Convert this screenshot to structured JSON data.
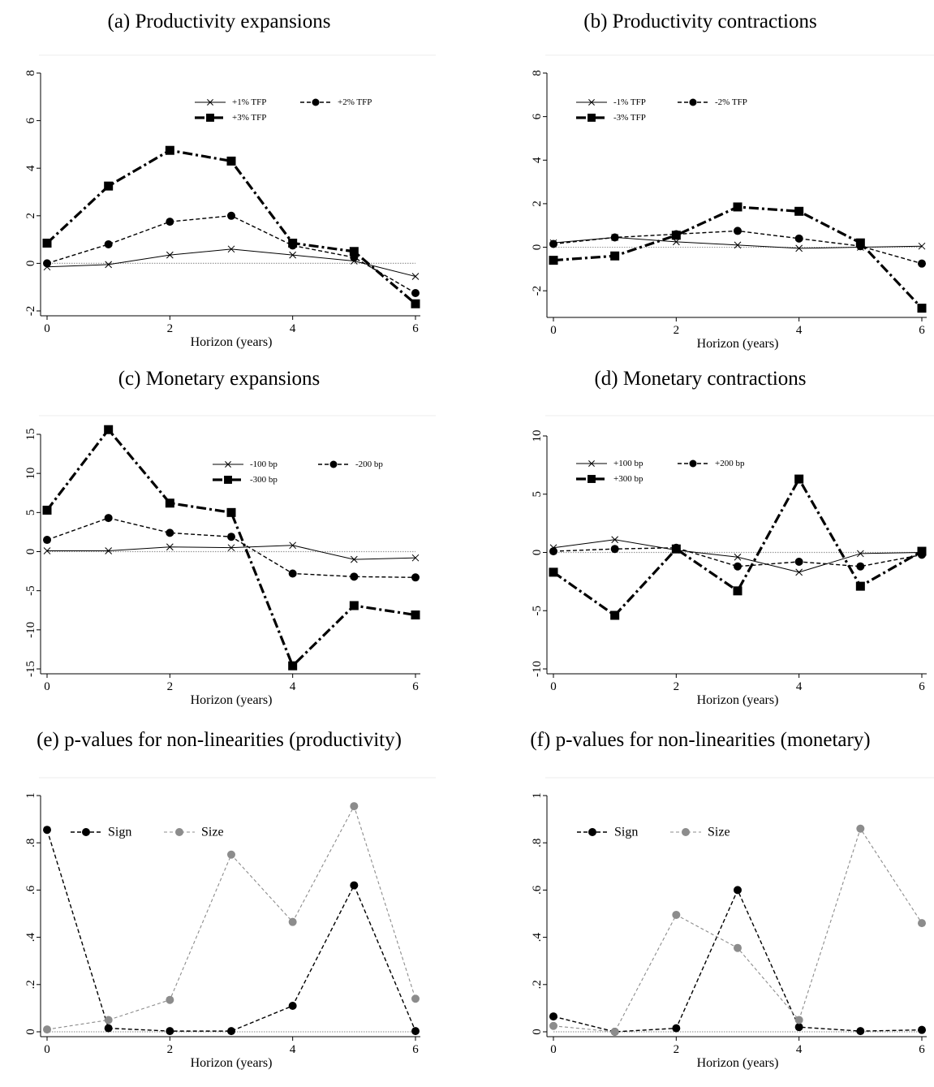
{
  "chart_data": [
    {
      "type": "line",
      "title": "(a) Productivity expansions",
      "xlabel": "Horizon (years)",
      "ylabel": "",
      "xlim": [
        0,
        6
      ],
      "ylim": [
        -2,
        8
      ],
      "xticks": [
        "0",
        "2",
        "4",
        "6"
      ],
      "yticks": [
        "-2",
        "0",
        "2",
        "4",
        "6",
        "8"
      ],
      "legend_position": "top-right",
      "x": [
        0,
        1,
        2,
        3,
        4,
        5,
        6
      ],
      "series": [
        {
          "name": "+1% TFP",
          "style": "thin-x",
          "values": [
            -0.15,
            -0.05,
            0.35,
            0.6,
            0.35,
            0.1,
            -0.55
          ]
        },
        {
          "name": "+2% TFP",
          "style": "dash-dot-circle",
          "values": [
            0.0,
            0.8,
            1.75,
            2.0,
            0.75,
            0.25,
            -1.25
          ]
        },
        {
          "name": "+3% TFP",
          "style": "bold-square",
          "values": [
            0.85,
            3.25,
            4.75,
            4.3,
            0.85,
            0.5,
            -1.7
          ]
        }
      ]
    },
    {
      "type": "line",
      "title": "(b) Productivity contractions",
      "xlabel": "Horizon (years)",
      "ylabel": "",
      "xlim": [
        0,
        6
      ],
      "ylim": [
        -3,
        8
      ],
      "xticks": [
        "0",
        "2",
        "4",
        "6"
      ],
      "yticks": [
        "-2",
        "0",
        "2",
        "4",
        "6",
        "8"
      ],
      "legend_position": "top-left",
      "x": [
        0,
        1,
        2,
        3,
        4,
        5,
        6
      ],
      "series": [
        {
          "name": "-1% TFP",
          "style": "thin-x",
          "values": [
            0.2,
            0.45,
            0.25,
            0.1,
            -0.05,
            0.0,
            0.05
          ]
        },
        {
          "name": "-2% TFP",
          "style": "dash-dot-circle",
          "values": [
            0.15,
            0.45,
            0.6,
            0.75,
            0.4,
            0.05,
            -0.75
          ]
        },
        {
          "name": "-3% TFP",
          "style": "bold-square",
          "values": [
            -0.6,
            -0.4,
            0.55,
            1.85,
            1.65,
            0.2,
            -2.8
          ]
        }
      ]
    },
    {
      "type": "line",
      "title": "(c) Monetary expansions",
      "xlabel": "Horizon (years)",
      "ylabel": "",
      "xlim": [
        0,
        6
      ],
      "ylim": [
        -15,
        15
      ],
      "xticks": [
        "0",
        "2",
        "4",
        "6"
      ],
      "yticks": [
        "-15",
        "-10",
        "-5",
        "0",
        "5",
        "10",
        "15"
      ],
      "legend_position": "top-right",
      "x": [
        0,
        1,
        2,
        3,
        4,
        5,
        6
      ],
      "series": [
        {
          "name": "-100 bp",
          "style": "thin-x",
          "values": [
            0.1,
            0.1,
            0.6,
            0.5,
            0.8,
            -1.0,
            -0.8
          ]
        },
        {
          "name": "-200 bp",
          "style": "dash-dot-circle",
          "values": [
            1.5,
            4.3,
            2.4,
            1.9,
            -2.8,
            -3.2,
            -3.3
          ]
        },
        {
          "name": "-300 bp",
          "style": "bold-square",
          "values": [
            5.3,
            15.6,
            6.2,
            5.0,
            -14.6,
            -6.9,
            -8.1
          ]
        }
      ]
    },
    {
      "type": "line",
      "title": "(d) Monetary contractions",
      "xlabel": "Horizon (years)",
      "ylabel": "",
      "xlim": [
        0,
        6
      ],
      "ylim": [
        -10,
        10
      ],
      "xticks": [
        "0",
        "2",
        "4",
        "6"
      ],
      "yticks": [
        "-10",
        "-5",
        "0",
        "5",
        "10"
      ],
      "legend_position": "top-left",
      "x": [
        0,
        1,
        2,
        3,
        4,
        5,
        6
      ],
      "series": [
        {
          "name": "+100 bp",
          "style": "thin-x",
          "values": [
            0.4,
            1.1,
            0.2,
            -0.4,
            -1.7,
            -0.1,
            0.0
          ]
        },
        {
          "name": "+200 bp",
          "style": "dash-dot-circle",
          "values": [
            0.1,
            0.3,
            0.4,
            -1.2,
            -0.8,
            -1.2,
            -0.2
          ]
        },
        {
          "name": "+300 bp",
          "style": "bold-square",
          "values": [
            -1.7,
            -5.4,
            0.3,
            -3.3,
            6.3,
            -2.9,
            0.1
          ]
        }
      ]
    },
    {
      "type": "line",
      "title": "(e) p-values for non-linearities (productivity)",
      "xlabel": "Horizon (years)",
      "ylabel": "",
      "xlim": [
        0,
        6
      ],
      "ylim": [
        0,
        1
      ],
      "xticks": [
        "0",
        "2",
        "4",
        "6"
      ],
      "yticks": [
        "0",
        ".2",
        ".4",
        ".6",
        ".8",
        "1"
      ],
      "legend_position": "top-left",
      "x": [
        0,
        1,
        2,
        3,
        4,
        5,
        6
      ],
      "series": [
        {
          "name": "Sign",
          "style": "black-dash",
          "values": [
            0.855,
            0.015,
            0.003,
            0.003,
            0.11,
            0.62,
            0.003
          ]
        },
        {
          "name": "Size",
          "style": "gray-dash",
          "values": [
            0.01,
            0.05,
            0.135,
            0.75,
            0.465,
            0.955,
            0.14
          ]
        }
      ]
    },
    {
      "type": "line",
      "title": "(f) p-values for non-linearities (monetary)",
      "xlabel": "Horizon (years)",
      "ylabel": "",
      "xlim": [
        0,
        6
      ],
      "ylim": [
        0,
        1
      ],
      "xticks": [
        "0",
        "2",
        "4",
        "6"
      ],
      "yticks": [
        "0",
        ".2",
        ".4",
        ".6",
        ".8",
        "1"
      ],
      "legend_position": "top-left",
      "x": [
        0,
        1,
        2,
        3,
        4,
        5,
        6
      ],
      "series": [
        {
          "name": "Sign",
          "style": "black-dash",
          "values": [
            0.065,
            0.0,
            0.015,
            0.6,
            0.02,
            0.003,
            0.008
          ]
        },
        {
          "name": "Size",
          "style": "gray-dash",
          "values": [
            0.025,
            0.0,
            0.495,
            0.355,
            0.05,
            0.86,
            0.46
          ]
        }
      ]
    }
  ]
}
